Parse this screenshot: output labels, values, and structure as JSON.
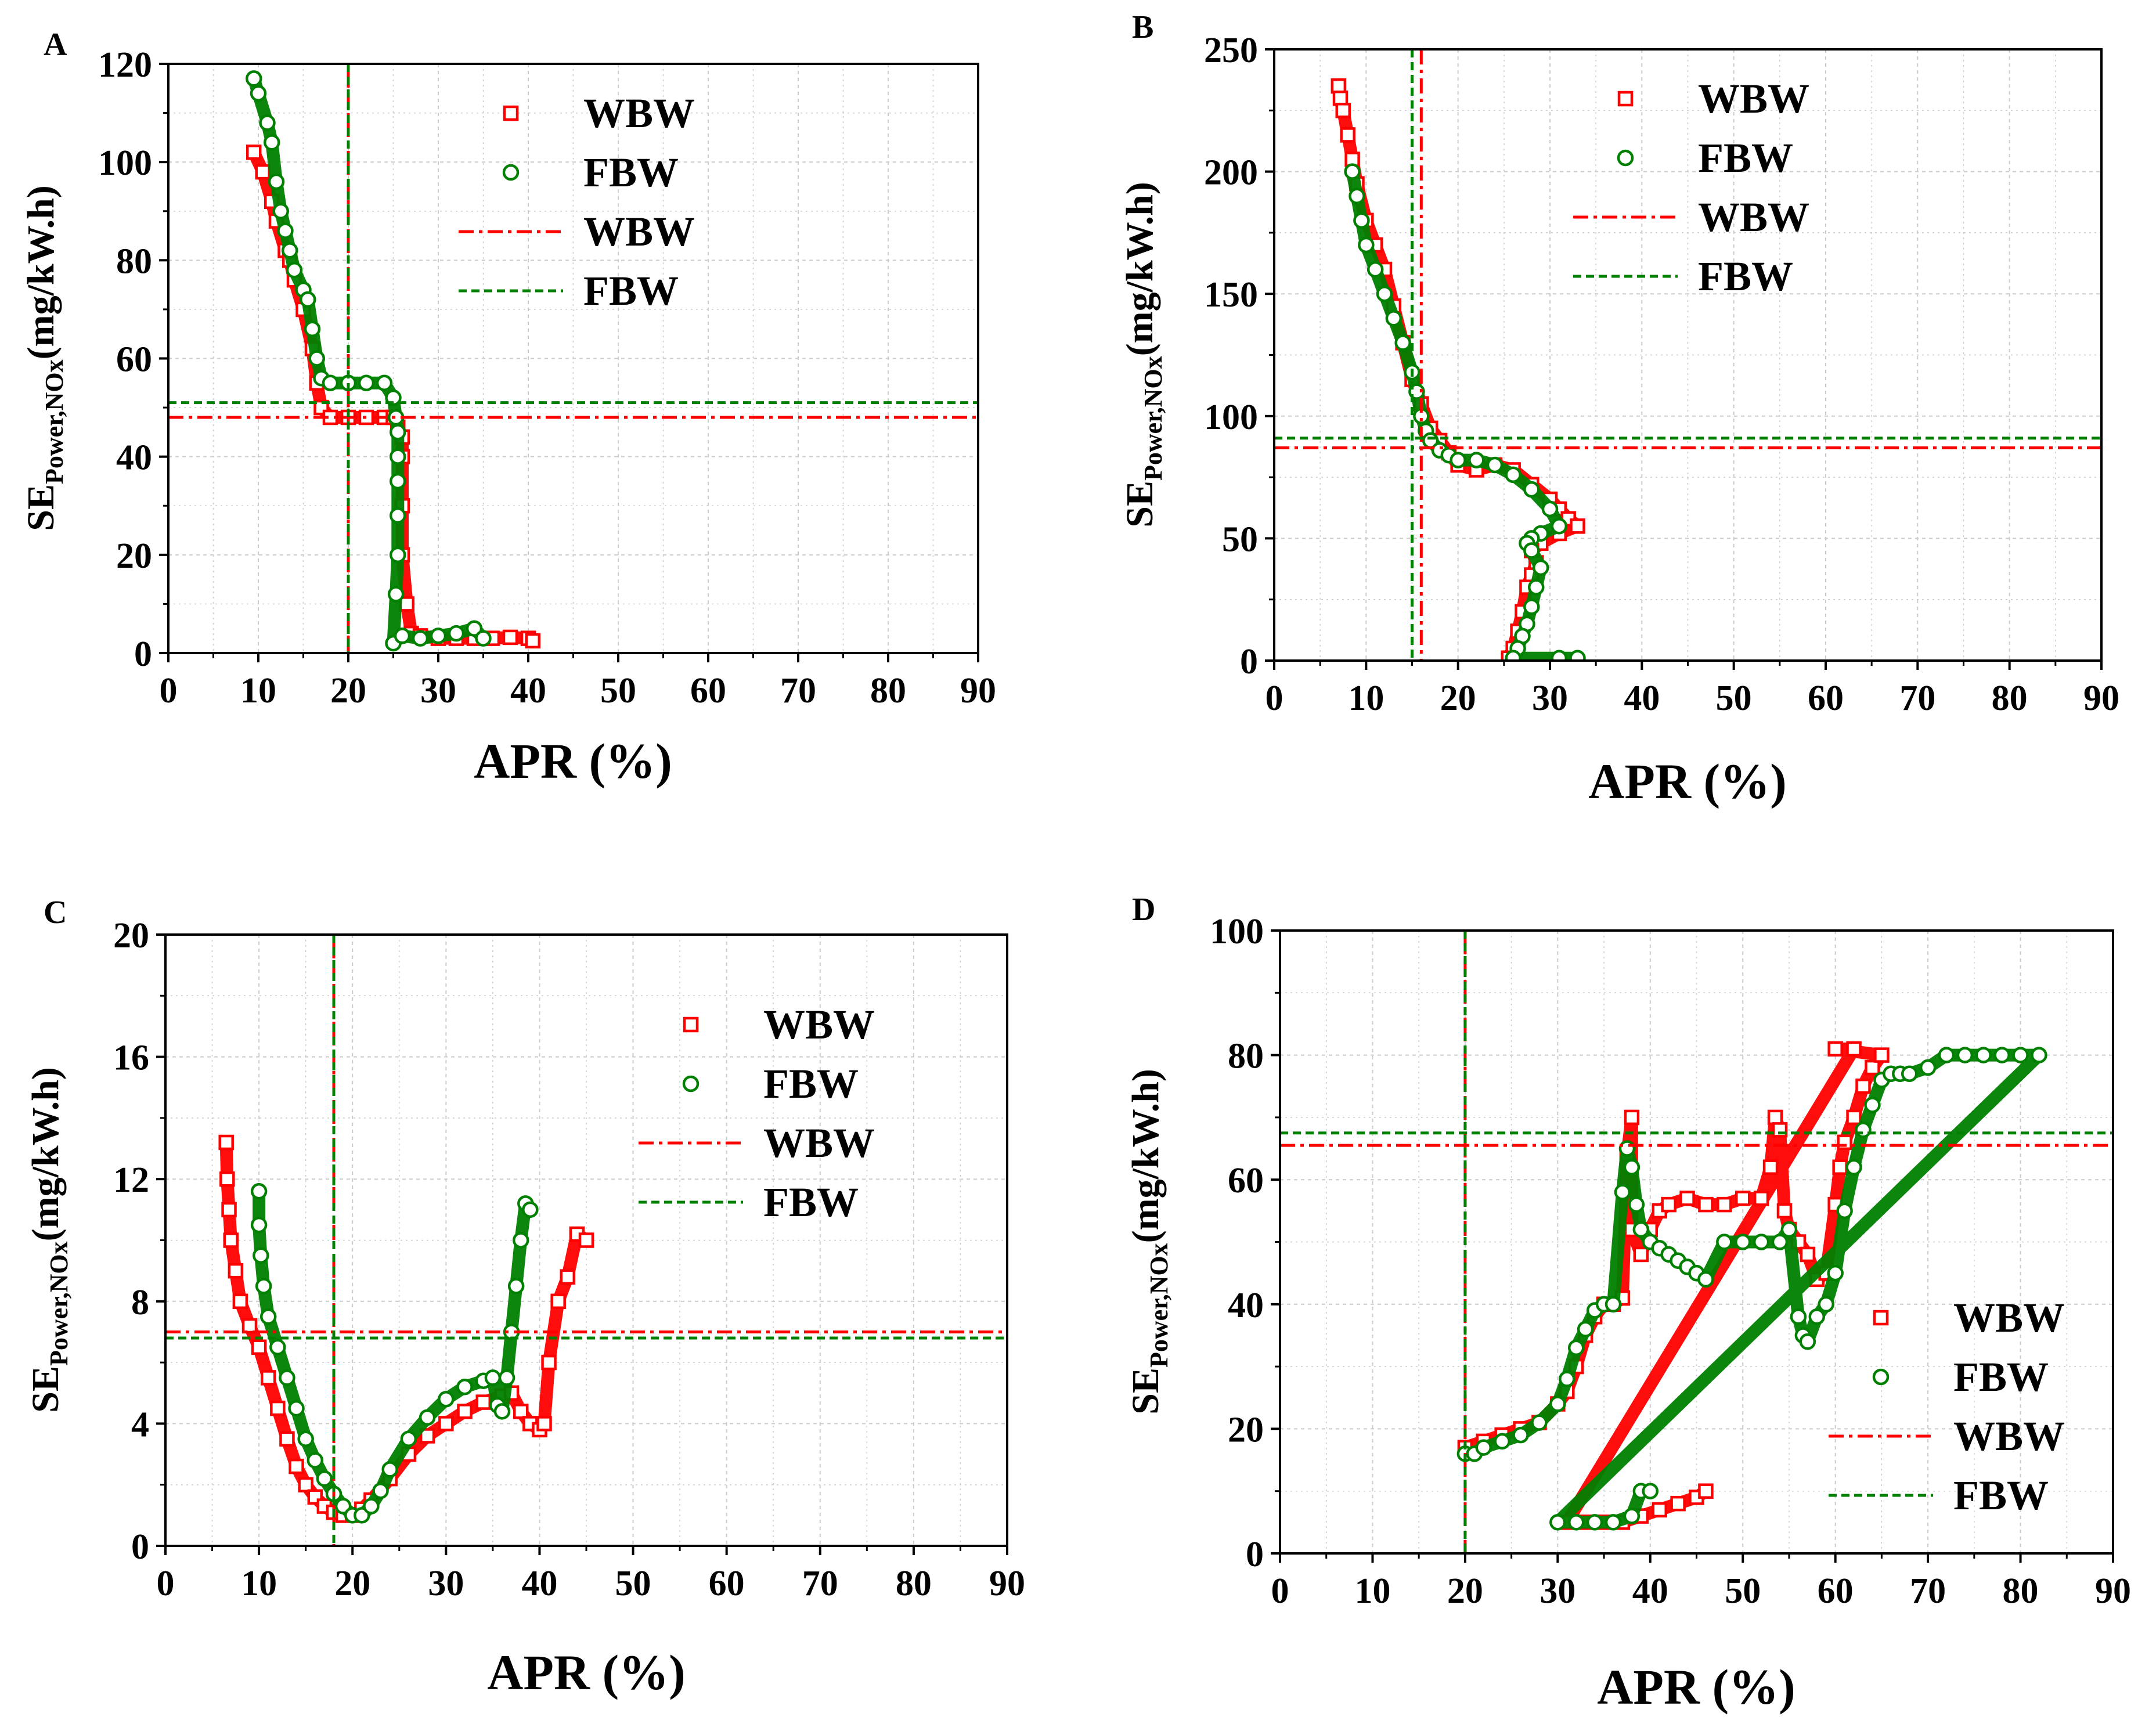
{
  "figure": {
    "colors": {
      "wbw": "#ff0000",
      "fbw": "#008000",
      "grid": "#cccccc",
      "axis": "#000000"
    }
  },
  "chart_data": [
    {
      "panel": "A",
      "type": "scatter",
      "xlabel": "APR (%)",
      "ylabel": {
        "main": "SE",
        "sub": "Power,NOx",
        "unit": "(mg/kW.h)"
      },
      "xlim": [
        0,
        90
      ],
      "ylim": [
        0,
        120
      ],
      "xticks": [
        0,
        10,
        20,
        30,
        40,
        50,
        60,
        70,
        80,
        90
      ],
      "yticks": [
        0,
        20,
        40,
        60,
        80,
        100,
        120
      ],
      "grid": true,
      "legend": {
        "position": "top-right",
        "entries": [
          {
            "label": "WBW",
            "kind": "square",
            "color": "#ff0000"
          },
          {
            "label": "FBW",
            "kind": "circle",
            "color": "#008000"
          },
          {
            "label": "WBW",
            "kind": "dashdot",
            "color": "#ff0000"
          },
          {
            "label": "FBW",
            "kind": "dash",
            "color": "#008000"
          }
        ]
      },
      "ref_lines": {
        "wbw": {
          "x": 20,
          "y": 48
        },
        "fbw": {
          "x": 20,
          "y": 51
        }
      },
      "series": [
        {
          "name": "WBW",
          "marker": "square",
          "color": "#ff0000",
          "x": [
            9.5,
            10.5,
            11.5,
            12,
            13,
            13.5,
            14,
            15,
            16,
            16.5,
            17,
            18,
            20,
            22,
            24,
            25,
            25.5,
            26,
            26,
            26,
            26,
            26.5,
            27,
            28,
            30,
            32,
            34,
            36,
            38,
            40,
            40.5
          ],
          "y": [
            102,
            98,
            92,
            88,
            82,
            80,
            76,
            70,
            62,
            55,
            50,
            48,
            48,
            48,
            48,
            48,
            46,
            44,
            40,
            30,
            20,
            10,
            4,
            3.5,
            3,
            3,
            3,
            3,
            3.2,
            3,
            2.5
          ]
        },
        {
          "name": "FBW",
          "marker": "circle",
          "color": "#008000",
          "x": [
            9.5,
            10,
            11,
            11.5,
            12,
            12.5,
            13,
            13.5,
            14,
            15,
            15.5,
            16,
            16.5,
            17,
            18,
            20,
            22,
            24,
            25,
            25.3,
            25.5,
            25.5,
            25.5,
            25.5,
            25.5,
            25.3,
            25,
            26,
            28,
            30,
            32,
            34,
            35
          ],
          "y": [
            117,
            114,
            108,
            104,
            96,
            90,
            86,
            82,
            78,
            74,
            72,
            66,
            60,
            56,
            55,
            55,
            55,
            55,
            52,
            48,
            45,
            40,
            35,
            28,
            20,
            12,
            2,
            3.5,
            3,
            3.5,
            4,
            5,
            3
          ]
        }
      ]
    },
    {
      "panel": "B",
      "type": "scatter",
      "xlabel": "APR (%)",
      "ylabel": {
        "main": "SE",
        "sub": "Power,NOx",
        "unit": "(mg/kW.h)"
      },
      "xlim": [
        0,
        90
      ],
      "ylim": [
        0,
        250
      ],
      "xticks": [
        0,
        10,
        20,
        30,
        40,
        50,
        60,
        70,
        80,
        90
      ],
      "yticks": [
        0,
        50,
        100,
        150,
        200,
        250
      ],
      "grid": true,
      "legend": {
        "position": "top-right",
        "entries": [
          {
            "label": "WBW",
            "kind": "square",
            "color": "#ff0000"
          },
          {
            "label": "FBW",
            "kind": "circle",
            "color": "#008000"
          },
          {
            "label": "WBW",
            "kind": "dashdot",
            "color": "#ff0000"
          },
          {
            "label": "FBW",
            "kind": "dash",
            "color": "#008000"
          }
        ]
      },
      "ref_lines": {
        "wbw": {
          "x": 16,
          "y": 87
        },
        "fbw": {
          "x": 15,
          "y": 91
        }
      },
      "series": [
        {
          "name": "WBW",
          "marker": "square",
          "color": "#ff0000",
          "x": [
            7,
            7.2,
            7.5,
            8,
            8.5,
            9,
            10,
            11,
            12,
            13,
            14,
            15,
            16,
            17,
            18,
            19,
            20,
            22,
            24,
            26,
            28,
            30,
            31,
            32,
            33,
            31,
            29,
            28,
            28.5,
            28,
            27.5,
            27,
            26.5,
            26,
            25.5
          ],
          "y": [
            235,
            230,
            225,
            215,
            205,
            195,
            180,
            170,
            160,
            145,
            130,
            115,
            105,
            95,
            90,
            85,
            80,
            78,
            80,
            78,
            72,
            66,
            62,
            58,
            55,
            52,
            48,
            45,
            40,
            35,
            30,
            20,
            12,
            5,
            1
          ]
        },
        {
          "name": "FBW",
          "marker": "circle",
          "color": "#008000",
          "x": [
            8.5,
            9,
            9.5,
            10,
            11,
            12,
            13,
            14,
            15,
            15.5,
            16,
            16.5,
            17,
            18,
            19,
            20,
            22,
            24,
            26,
            28,
            30,
            31,
            29,
            28,
            27.5,
            28,
            29,
            28.5,
            28,
            27.5,
            27,
            26.5,
            26,
            31,
            33
          ],
          "y": [
            200,
            190,
            180,
            170,
            160,
            150,
            140,
            130,
            118,
            110,
            100,
            94,
            90,
            86,
            84,
            82,
            82,
            80,
            76,
            70,
            62,
            55,
            52,
            50,
            48,
            45,
            38,
            30,
            22,
            15,
            10,
            5,
            1,
            1,
            1
          ]
        }
      ]
    },
    {
      "panel": "C",
      "type": "scatter",
      "xlabel": "APR (%)",
      "ylabel": {
        "main": "SE",
        "sub": "Power,NOx",
        "unit": "(mg/kW.h)"
      },
      "xlim": [
        0,
        90
      ],
      "ylim": [
        0,
        20
      ],
      "xticks": [
        0,
        10,
        20,
        30,
        40,
        50,
        60,
        70,
        80,
        90
      ],
      "yticks": [
        0,
        4,
        8,
        12,
        16,
        20
      ],
      "grid": true,
      "legend": {
        "position": "top-right",
        "entries": [
          {
            "label": "WBW",
            "kind": "square",
            "color": "#ff0000"
          },
          {
            "label": "FBW",
            "kind": "circle",
            "color": "#008000"
          },
          {
            "label": "WBW",
            "kind": "dashdot",
            "color": "#ff0000"
          },
          {
            "label": "FBW",
            "kind": "dash",
            "color": "#008000"
          }
        ]
      },
      "ref_lines": {
        "wbw": {
          "x": 18,
          "y": 7
        },
        "fbw": {
          "x": 18,
          "y": 6.8
        }
      },
      "series": [
        {
          "name": "WBW",
          "marker": "square",
          "color": "#ff0000",
          "x": [
            6.5,
            6.6,
            6.8,
            7,
            7.5,
            8,
            9,
            10,
            11,
            12,
            13,
            14,
            15,
            16,
            17,
            18,
            19,
            20,
            21,
            22,
            24,
            26,
            28,
            30,
            32,
            34,
            36,
            37,
            38,
            39,
            40,
            40.5,
            41,
            42,
            43,
            44,
            45
          ],
          "y": [
            13.2,
            12,
            11,
            10,
            9,
            8,
            7.2,
            6.5,
            5.5,
            4.5,
            3.5,
            2.6,
            2,
            1.6,
            1.3,
            1.1,
            1,
            1,
            1.2,
            1.5,
            2.2,
            3,
            3.6,
            4,
            4.4,
            4.7,
            4.9,
            5,
            4.4,
            4,
            3.8,
            4,
            6,
            8,
            8.8,
            10.2,
            10
          ]
        },
        {
          "name": "FBW",
          "marker": "circle",
          "color": "#008000",
          "x": [
            10,
            10,
            10.2,
            10.5,
            11,
            12,
            13,
            14,
            15,
            16,
            17,
            18,
            19,
            20,
            21,
            22,
            23,
            24,
            26,
            28,
            30,
            32,
            34,
            35,
            35.5,
            36,
            36.5,
            37,
            37.5,
            38,
            38.5,
            39
          ],
          "y": [
            11.6,
            10.5,
            9.5,
            8.5,
            7.5,
            6.5,
            5.5,
            4.5,
            3.5,
            2.8,
            2.2,
            1.7,
            1.3,
            1,
            1,
            1.3,
            1.8,
            2.5,
            3.5,
            4.2,
            4.8,
            5.2,
            5.4,
            5.5,
            4.6,
            4.4,
            5.5,
            7,
            8.5,
            10,
            11.2,
            11
          ]
        }
      ]
    },
    {
      "panel": "D",
      "type": "scatter",
      "xlabel": "APR (%)",
      "ylabel": {
        "main": "SE",
        "sub": "Power,NOx",
        "unit": "(mg/kW.h)"
      },
      "xlim": [
        0,
        90
      ],
      "ylim": [
        0,
        100
      ],
      "xticks": [
        0,
        10,
        20,
        30,
        40,
        50,
        60,
        70,
        80,
        90
      ],
      "yticks": [
        0,
        20,
        40,
        60,
        80,
        100
      ],
      "grid": true,
      "legend": {
        "position": "bottom-right",
        "entries": [
          {
            "label": "WBW",
            "kind": "square",
            "color": "#ff0000"
          },
          {
            "label": "FBW",
            "kind": "circle",
            "color": "#008000"
          },
          {
            "label": "WBW",
            "kind": "dashdot",
            "color": "#ff0000"
          },
          {
            "label": "FBW",
            "kind": "dash",
            "color": "#008000"
          }
        ]
      },
      "ref_lines": {
        "wbw": {
          "x": 20,
          "y": 65.5
        },
        "fbw": {
          "x": 20,
          "y": 67.5
        }
      },
      "series": [
        {
          "name": "WBW",
          "marker": "square",
          "color": "#ff0000",
          "x": [
            20,
            22,
            24,
            26,
            28,
            30,
            31,
            32,
            33,
            34,
            35,
            36,
            37,
            37.5,
            38,
            38,
            39,
            40,
            41,
            42,
            44,
            46,
            48,
            50,
            52,
            53,
            53.5,
            54,
            54.5,
            55,
            56,
            57,
            58,
            59,
            60,
            60.5,
            61,
            62,
            63,
            64,
            65,
            60,
            62,
            31,
            33,
            35,
            37,
            39,
            41,
            43,
            45,
            46
          ],
          "y": [
            17,
            18,
            19,
            20,
            21,
            24,
            26,
            30,
            35,
            38,
            40,
            40,
            41,
            64,
            70,
            52,
            48,
            52,
            55,
            56,
            57,
            56,
            56,
            57,
            57,
            62,
            70,
            68,
            55,
            52,
            50,
            48,
            44,
            45,
            56,
            62,
            66,
            70,
            75,
            78,
            80,
            81,
            81,
            5,
            5,
            5,
            5,
            6,
            7,
            8,
            9,
            10
          ]
        },
        {
          "name": "FBW",
          "marker": "circle",
          "color": "#008000",
          "x": [
            20,
            21,
            22,
            24,
            26,
            28,
            30,
            31,
            32,
            33,
            34,
            35,
            36,
            37,
            37.5,
            38,
            38.5,
            39,
            40,
            41,
            42,
            43,
            44,
            45,
            46,
            48,
            50,
            52,
            54,
            55,
            56,
            56.5,
            57,
            58,
            59,
            60,
            61,
            62,
            63,
            64,
            65,
            66,
            67,
            68,
            70,
            72,
            74,
            76,
            78,
            80,
            82,
            30,
            32,
            34,
            36,
            38,
            39,
            40
          ],
          "y": [
            16,
            16,
            17,
            18,
            19,
            21,
            24,
            28,
            33,
            36,
            39,
            40,
            40,
            58,
            65,
            62,
            56,
            52,
            50,
            49,
            48,
            47,
            46,
            45,
            44,
            50,
            50,
            50,
            50,
            52,
            38,
            35,
            34,
            38,
            40,
            45,
            55,
            62,
            68,
            72,
            76,
            77,
            77,
            77,
            78,
            80,
            80,
            80,
            80,
            80,
            80,
            5,
            5,
            5,
            5,
            6,
            10,
            10
          ]
        }
      ]
    }
  ]
}
